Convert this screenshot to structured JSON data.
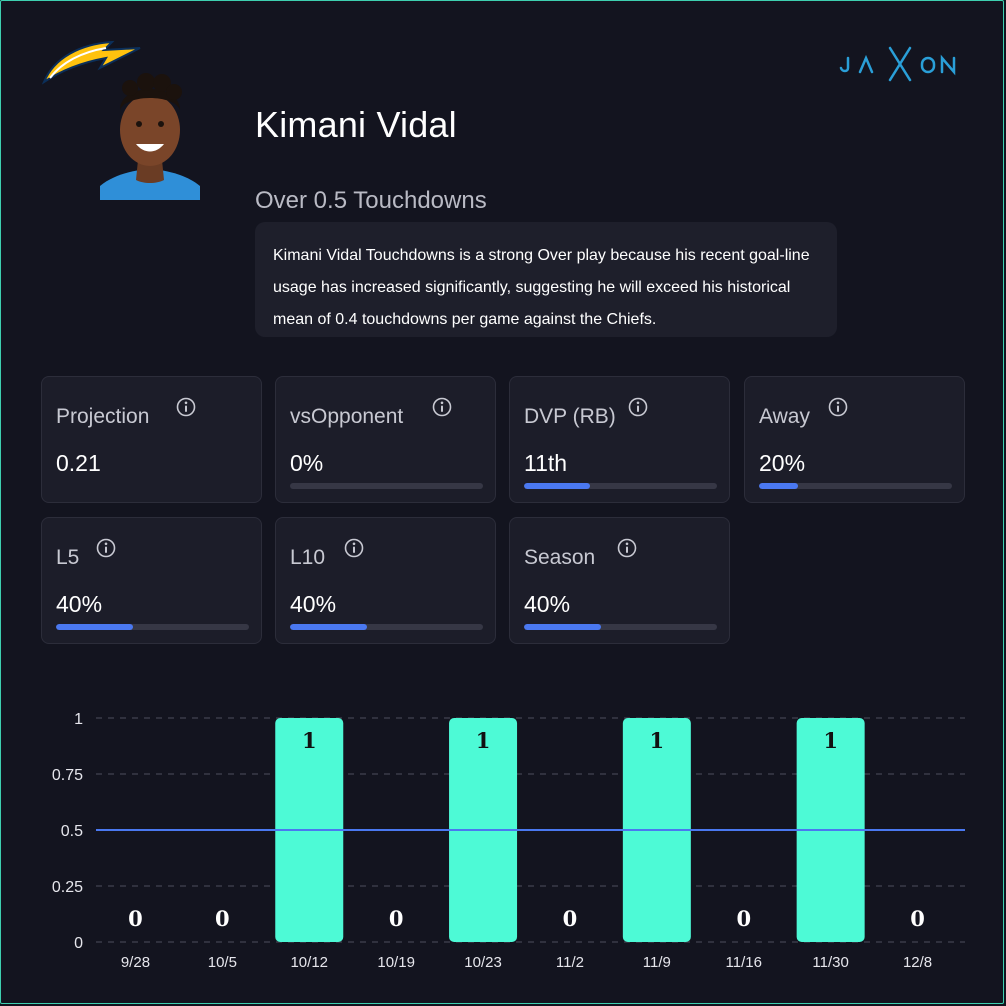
{
  "player": {
    "name": "Kimani Vidal",
    "prop": "Over 0.5 Touchdowns",
    "summary": "Kimani Vidal Touchdowns is a strong Over play because his recent goal-line usage has increased significantly, suggesting he will exceed his historical mean of 0.4 touchdowns per game against the Chiefs."
  },
  "brand": {
    "name": "JAXON",
    "color": "#2a9fd8"
  },
  "colors": {
    "background": "#13141f",
    "accent": "#4a78f0",
    "bar": "#4dfad6",
    "border": "#3ecfb0"
  },
  "stats": [
    {
      "label": "Projection",
      "value": "0.21",
      "progress": null
    },
    {
      "label": "vsOpponent",
      "value": "0%",
      "progress": 0
    },
    {
      "label": "DVP (RB)",
      "value": "11th",
      "progress": 0.34
    },
    {
      "label": "Away",
      "value": "20%",
      "progress": 0.2
    },
    {
      "label": "L5",
      "value": "40%",
      "progress": 0.4
    },
    {
      "label": "L10",
      "value": "40%",
      "progress": 0.4
    },
    {
      "label": "Season",
      "value": "40%",
      "progress": 0.4
    }
  ],
  "chart_data": {
    "type": "bar",
    "categories": [
      "9/28",
      "10/5",
      "10/12",
      "10/19",
      "10/23",
      "11/2",
      "11/9",
      "11/16",
      "11/30",
      "12/8"
    ],
    "values": [
      0,
      0,
      1,
      0,
      1,
      0,
      1,
      0,
      1,
      0
    ],
    "data_labels": [
      "0",
      "0",
      "1",
      "0",
      "1",
      "0",
      "1",
      "0",
      "1",
      "0"
    ],
    "yticks": [
      "0",
      "0.25",
      "0.5",
      "0.75",
      "1"
    ],
    "ylim": [
      0,
      1
    ],
    "line_value": 0.5,
    "grid": true
  }
}
